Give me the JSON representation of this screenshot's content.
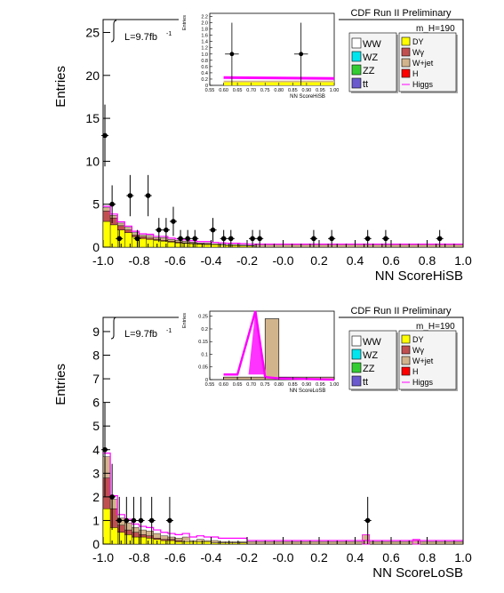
{
  "colors": {
    "WW": "#ffffff",
    "WZ": "#00e5ee",
    "ZZ": "#33cc33",
    "tt": "#6a5acd",
    "DY": "#ffff00",
    "Wgamma": "#c05050",
    "Wjet": "#d2b48c",
    "H": "#ff0000",
    "Higgs": "#ff00ff",
    "data": "#000000"
  },
  "chart_data": [
    {
      "type": "bar",
      "title": "CDF Run II Preliminary",
      "mass_label": "m_H=190",
      "lumi": "L=9.7fb",
      "lumi_sup": "-1",
      "xlabel": "NN ScoreHiSB",
      "ylabel": "Entries",
      "xlim": [
        -1.0,
        1.0
      ],
      "ylim": [
        0,
        26.5
      ],
      "xticks": [
        "-1.0",
        "-0.8",
        "-0.6",
        "-0.4",
        "-0.2",
        "-0.0",
        "0.2",
        "0.4",
        "0.6",
        "0.8",
        "1.0"
      ],
      "yticks": [
        "0",
        "5",
        "10",
        "15",
        "20",
        "25"
      ],
      "legend_left": [
        "WW",
        "WZ",
        "ZZ",
        "tt"
      ],
      "legend_right": [
        "DY",
        "Wγ",
        "W+jet",
        "H",
        "Higgs"
      ],
      "stack_x": [
        -1.0,
        -0.96,
        -0.92,
        -0.88,
        -0.84,
        -0.8,
        -0.76,
        -0.72,
        -0.68,
        -0.64,
        -0.6,
        -0.56,
        -0.52,
        -0.48,
        -0.44,
        -0.4,
        -0.36,
        -0.32,
        -0.28,
        -0.24,
        -0.2
      ],
      "yellow": [
        3.0,
        2.6,
        2.0,
        1.7,
        1.2,
        1.0,
        0.9,
        0.8,
        0.7,
        0.6,
        0.5,
        0.45,
        0.4,
        0.35,
        0.3,
        0.3,
        0.25,
        0.2,
        0.2,
        0.15,
        0.15
      ],
      "red": [
        1.2,
        0.8,
        0.5,
        0.3,
        0.2,
        0.2,
        0.15,
        0.1,
        0.1,
        0.1,
        0.1,
        0.05,
        0.05,
        0.05,
        0.05,
        0.0,
        0.0,
        0.0,
        0.0,
        0.0,
        0.0
      ],
      "tan": [
        0.4,
        0.3,
        0.3,
        0.3,
        0.3,
        0.2,
        0.3,
        0.2,
        0.3,
        0.2,
        0.2,
        0.2,
        0.15,
        0.1,
        0.15,
        0.1,
        0.1,
        0.1,
        0.1,
        0.1,
        0.05
      ],
      "tail_level": 0.3,
      "data_points": [
        {
          "x": -0.99,
          "y": 13,
          "err": 3.6
        },
        {
          "x": -0.95,
          "y": 5,
          "err": 2.2
        },
        {
          "x": -0.91,
          "y": 1,
          "err": 1.0
        },
        {
          "x": -0.85,
          "y": 6,
          "err": 2.4
        },
        {
          "x": -0.81,
          "y": 1,
          "err": 1.0
        },
        {
          "x": -0.75,
          "y": 6,
          "err": 2.4
        },
        {
          "x": -0.69,
          "y": 2,
          "err": 1.4
        },
        {
          "x": -0.65,
          "y": 2,
          "err": 1.4
        },
        {
          "x": -0.61,
          "y": 3,
          "err": 1.7
        },
        {
          "x": -0.57,
          "y": 1,
          "err": 1.0
        },
        {
          "x": -0.53,
          "y": 1,
          "err": 1.0
        },
        {
          "x": -0.49,
          "y": 1,
          "err": 1.0
        },
        {
          "x": -0.39,
          "y": 2,
          "err": 1.4
        },
        {
          "x": -0.33,
          "y": 1,
          "err": 1.0
        },
        {
          "x": -0.29,
          "y": 1,
          "err": 1.0
        },
        {
          "x": -0.17,
          "y": 1,
          "err": 1.0
        },
        {
          "x": -0.13,
          "y": 1,
          "err": 1.0
        },
        {
          "x": 0.17,
          "y": 1,
          "err": 1.0
        },
        {
          "x": 0.27,
          "y": 1,
          "err": 1.0
        },
        {
          "x": 0.47,
          "y": 1,
          "err": 1.0
        },
        {
          "x": 0.57,
          "y": 1,
          "err": 1.0
        },
        {
          "x": 0.87,
          "y": 1,
          "err": 1.0
        }
      ],
      "inset": {
        "xlabel": "NN ScoreHiSB",
        "ylabel": "Entries",
        "xlim": [
          0.55,
          1.0
        ],
        "ylim": [
          0,
          2.3
        ],
        "xticks": [
          "0.55",
          "0.60",
          "0.65",
          "0.70",
          "0.75",
          "0.80",
          "0.85",
          "0.90",
          "0.95",
          "1.00"
        ],
        "yticks": [
          "0",
          "0.2",
          "0.4",
          "0.6",
          "0.8",
          "1.0",
          "1.2",
          "1.4",
          "1.6",
          "1.8",
          "2.0",
          "2.2"
        ],
        "yellow_level": 0.1,
        "tan_level": 0.05,
        "magenta_level": 0.25,
        "data_points": [
          {
            "x": 0.63,
            "y": 1,
            "err": 1.0
          },
          {
            "x": 0.88,
            "y": 1,
            "err": 1.0
          }
        ]
      }
    },
    {
      "type": "bar",
      "title": "CDF Run II Preliminary",
      "mass_label": "m_H=190",
      "lumi": "L=9.7fb",
      "lumi_sup": "-1",
      "xlabel": "NN ScoreLoSB",
      "ylabel": "Entries",
      "xlim": [
        -1.0,
        1.0
      ],
      "ylim": [
        0,
        9.6
      ],
      "xticks": [
        "-1.0",
        "-0.8",
        "-0.6",
        "-0.4",
        "-0.2",
        "-0.0",
        "0.2",
        "0.4",
        "0.6",
        "0.8",
        "1.0"
      ],
      "yticks": [
        "0",
        "1",
        "2",
        "3",
        "4",
        "5",
        "6",
        "7",
        "8",
        "9"
      ],
      "legend_left": [
        "WW",
        "WZ",
        "ZZ",
        "tt"
      ],
      "legend_right": [
        "DY",
        "Wγ",
        "W+jet",
        "H",
        "Higgs"
      ],
      "stack_x": [
        -1.0,
        -0.96,
        -0.92,
        -0.88,
        -0.84,
        -0.8,
        -0.76,
        -0.72,
        -0.68,
        -0.64,
        -0.6,
        -0.56,
        -0.52,
        -0.48,
        -0.44,
        -0.4,
        -0.36,
        -0.32,
        -0.28,
        -0.24
      ],
      "yellow": [
        1.5,
        0.7,
        0.5,
        0.4,
        0.3,
        0.3,
        0.25,
        0.2,
        0.15,
        0.15,
        0.1,
        0.1,
        0.1,
        0.1,
        0.1,
        0.05,
        0.05,
        0.05,
        0.05,
        0.05
      ],
      "red": [
        1.3,
        0.8,
        0.3,
        0.2,
        0.2,
        0.1,
        0.1,
        0.05,
        0.05,
        0.05,
        0.05,
        0.0,
        0.0,
        0.0,
        0.0,
        0.0,
        0.0,
        0.0,
        0.0,
        0.0
      ],
      "tan": [
        0.9,
        0.4,
        0.3,
        0.3,
        0.2,
        0.2,
        0.2,
        0.2,
        0.15,
        0.1,
        0.1,
        0.2,
        0.05,
        0.1,
        0.05,
        0.1,
        0.05,
        0.05,
        0.05,
        0.05
      ],
      "tail_level": 0.1,
      "spikes": [
        {
          "x": 0.44,
          "w": 0.04,
          "h": 0.4
        },
        {
          "x": 0.72,
          "w": 0.04,
          "h": 0.2
        }
      ],
      "data_points": [
        {
          "x": -0.99,
          "y": 4,
          "err": 2.0
        },
        {
          "x": -0.95,
          "y": 2,
          "err": 1.4
        },
        {
          "x": -0.91,
          "y": 1,
          "err": 1.0
        },
        {
          "x": -0.87,
          "y": 1,
          "err": 1.0
        },
        {
          "x": -0.83,
          "y": 1,
          "err": 1.0
        },
        {
          "x": -0.79,
          "y": 1,
          "err": 1.0
        },
        {
          "x": -0.73,
          "y": 1,
          "err": 1.0
        },
        {
          "x": -0.63,
          "y": 1,
          "err": 1.0
        },
        {
          "x": 0.47,
          "y": 1,
          "err": 1.0
        }
      ],
      "inset": {
        "xlabel": "NN ScoreLoSB",
        "ylabel": "Entries",
        "xlim": [
          0.55,
          1.0
        ],
        "ylim": [
          0,
          0.27
        ],
        "xticks": [
          "0.55",
          "0.60",
          "0.65",
          "0.70",
          "0.75",
          "0.80",
          "0.85",
          "0.90",
          "0.95",
          "1.00"
        ],
        "yticks": [
          "0",
          "0.05",
          "0.1",
          "0.15",
          "0.2",
          "0.25"
        ],
        "tan_bins": [
          {
            "x": 0.6,
            "w": 0.05,
            "h": 0.01
          },
          {
            "x": 0.65,
            "w": 0.05,
            "h": 0.01
          },
          {
            "x": 0.7,
            "w": 0.05,
            "h": 0.01
          },
          {
            "x": 0.75,
            "w": 0.05,
            "h": 0.24
          },
          {
            "x": 0.8,
            "w": 0.2,
            "h": 0.01
          }
        ],
        "magenta_points": [
          [
            0.6,
            0.02
          ],
          [
            0.65,
            0.02
          ],
          [
            0.715,
            0.27
          ],
          [
            0.75,
            0.01
          ],
          [
            0.8,
            0.005
          ],
          [
            1.0,
            0.0
          ]
        ]
      }
    }
  ]
}
